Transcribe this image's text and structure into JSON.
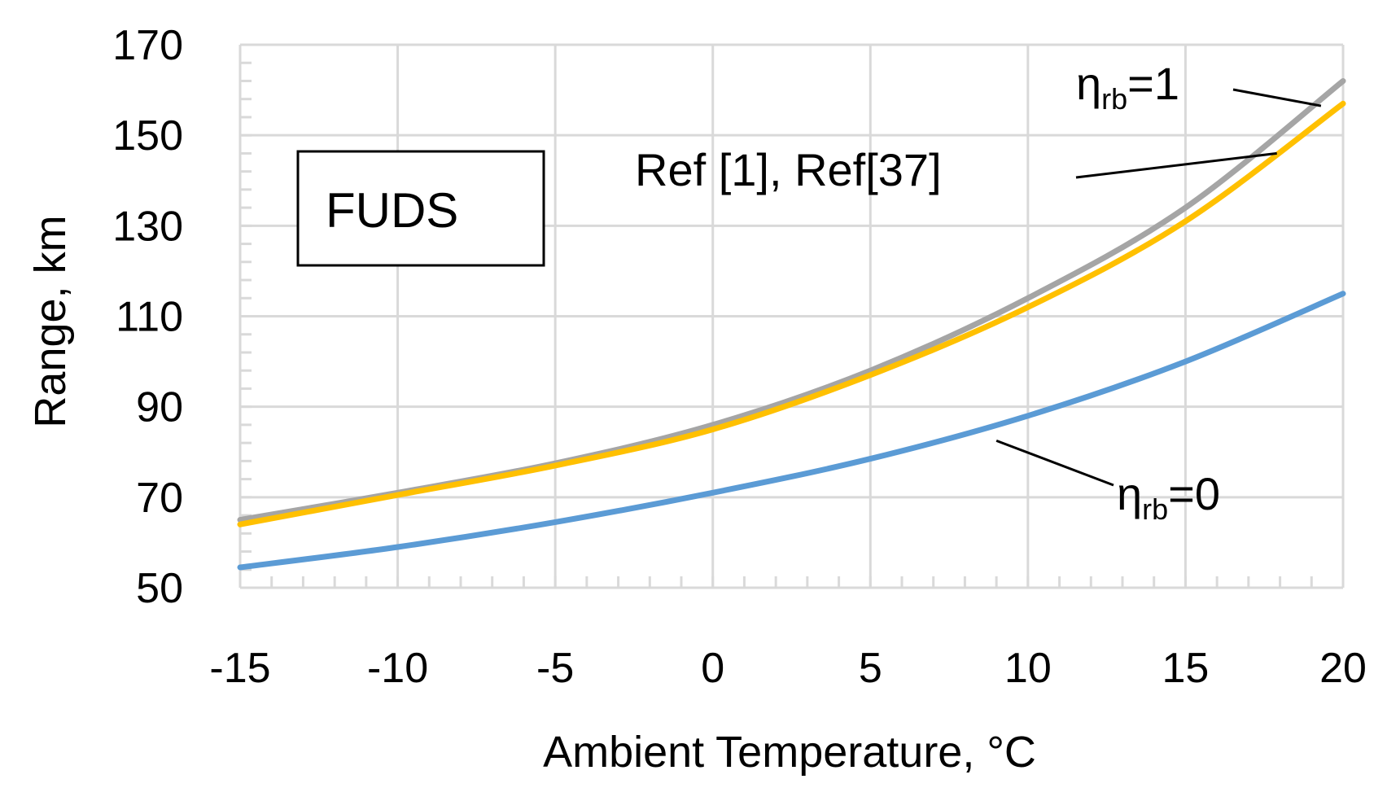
{
  "chart_data": {
    "type": "line",
    "title": "",
    "xlabel": "Ambient Temperature, °C",
    "ylabel": "Range, km",
    "xlim": [
      -15,
      20
    ],
    "ylim": [
      50,
      170
    ],
    "x_ticks": [
      -15,
      -10,
      -5,
      0,
      5,
      10,
      15,
      20
    ],
    "y_ticks": [
      50,
      70,
      90,
      110,
      130,
      150,
      170
    ],
    "x_tick_labels": [
      "-15",
      "-10",
      "-5",
      "0",
      "5",
      "10",
      "15",
      "20"
    ],
    "y_tick_labels": [
      "50",
      "70",
      "90",
      "110",
      "130",
      "150",
      "170"
    ],
    "grid": true,
    "x": [
      -15,
      -10,
      -5,
      0,
      5,
      10,
      15,
      20
    ],
    "series": [
      {
        "name": "ηrb=1",
        "color": "#A5A5A5",
        "values": [
          65,
          71,
          77.5,
          86,
          98,
          114,
          134,
          162
        ]
      },
      {
        "name": "Ref [1], Ref[37]",
        "color": "#FFC000",
        "values": [
          64,
          70.5,
          77,
          85,
          97,
          112,
          131,
          157
        ]
      },
      {
        "name": "ηrb=0",
        "color": "#5B9BD5",
        "values": [
          54.5,
          59,
          64.5,
          71,
          78.5,
          88,
          100,
          115
        ]
      }
    ],
    "annotations": {
      "box_label": "FUDS",
      "eta1": {
        "symbol": "η",
        "sub": "rb",
        "suffix": "=1",
        "arrow_to": [
          19.3,
          156.5
        ]
      },
      "ref": {
        "text": "Ref [1], Ref[37]",
        "arrow_to": [
          17.9,
          146
        ]
      },
      "eta0": {
        "symbol": "η",
        "sub": "rb",
        "suffix": "=0",
        "arrow_to": [
          9,
          82.5
        ]
      }
    }
  }
}
